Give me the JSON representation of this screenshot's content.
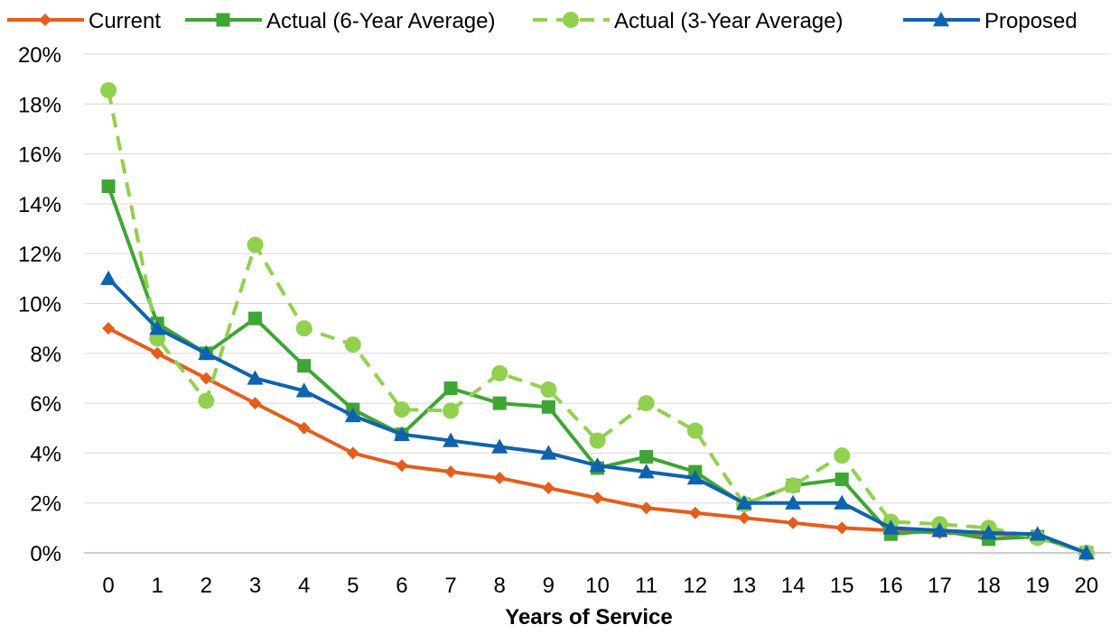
{
  "chart_data": {
    "type": "line",
    "title": "",
    "xlabel": "Years of Service",
    "ylabel": "",
    "categories": [
      "0",
      "1",
      "2",
      "3",
      "4",
      "5",
      "6",
      "7",
      "8",
      "9",
      "10",
      "11",
      "12",
      "13",
      "14",
      "15",
      "16",
      "17",
      "18",
      "19",
      "20"
    ],
    "ylim": [
      0,
      20
    ],
    "yticks": [
      "0%",
      "2%",
      "4%",
      "6%",
      "8%",
      "10%",
      "12%",
      "14%",
      "16%",
      "18%",
      "20%"
    ],
    "y_unit": "%",
    "grid": true,
    "legend_position": "top",
    "series": [
      {
        "name": "Current",
        "color": "#E35E1E",
        "marker": "diamond",
        "dash": "solid",
        "values": [
          9,
          8,
          7,
          6,
          5,
          4,
          3.5,
          3.25,
          3,
          2.6,
          2.2,
          1.8,
          1.6,
          1.4,
          1.2,
          1,
          0.9,
          0.8,
          0.75,
          0.7,
          0
        ]
      },
      {
        "name": "Actual (6-Year Average)",
        "color": "#3FA535",
        "marker": "square",
        "dash": "solid",
        "values": [
          14.7,
          9.2,
          8.0,
          9.4,
          7.5,
          5.75,
          4.75,
          6.6,
          6.0,
          5.85,
          3.4,
          3.85,
          3.25,
          1.95,
          2.7,
          2.95,
          0.75,
          0.9,
          0.55,
          0.65,
          0
        ]
      },
      {
        "name": "Actual (3-Year Average)",
        "color": "#92D050",
        "marker": "circle",
        "dash": "dashed",
        "values": [
          18.55,
          8.6,
          6.1,
          12.35,
          9.0,
          8.35,
          5.75,
          5.7,
          7.2,
          6.55,
          4.5,
          6.0,
          4.9,
          1.95,
          2.7,
          3.9,
          1.25,
          1.15,
          1.0,
          0.6,
          0
        ]
      },
      {
        "name": "Proposed",
        "color": "#0F62AF",
        "marker": "triangle",
        "dash": "solid",
        "values": [
          11,
          9,
          8,
          7,
          6.5,
          5.5,
          4.75,
          4.5,
          4.25,
          4.0,
          3.5,
          3.25,
          3.0,
          2.0,
          2.0,
          2.0,
          1.0,
          0.9,
          0.8,
          0.75,
          0
        ]
      }
    ]
  }
}
